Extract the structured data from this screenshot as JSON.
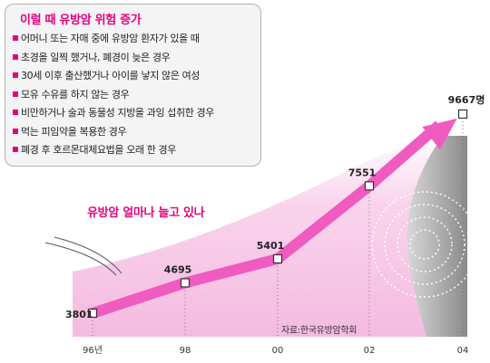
{
  "risk_box": {
    "title": "이럴 때 유방암 위험 증가",
    "items": [
      "어머니 또는 자매 중에 유방암 환자가 있을 때",
      "초경을 일찍 했거나, 폐경이 늦은 경우",
      "30세 이후 출산했거나 아이를 낳지 않은 여성",
      "모유 수유를 하지 않는 경우",
      "비만하거나 술과 동물성 지방을 과잉 섭취한 경우",
      "먹는 피임약을 복용한 경우",
      "폐경 후 호르몬대체요법을 오래 한 경우"
    ]
  },
  "subtitle": "유방암 얼마나 늘고 있나",
  "source": "자료:한국유방암학회",
  "colors": {
    "accent": "#e6007e",
    "line": "#f05bc0",
    "box_bg": "#f4f4f4"
  },
  "chart_data": {
    "type": "line",
    "title": "유방암 얼마나 늘고 있나",
    "categories": [
      "96년",
      "98",
      "00",
      "02",
      "04"
    ],
    "values": [
      3801,
      4695,
      5401,
      7551,
      9667
    ],
    "value_labels": [
      "3801",
      "4695",
      "5401",
      "7551",
      "9667명"
    ],
    "xlabel": "",
    "ylabel": "",
    "grid": "vertical-dotted"
  }
}
